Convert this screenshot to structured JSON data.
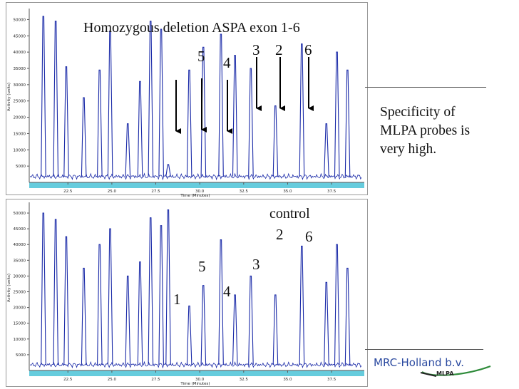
{
  "chart_data": [
    {
      "type": "line",
      "id": "top",
      "ylabel": "Activity (units)",
      "xlabel": "Time (Minutes)",
      "xlim": [
        20.3,
        39.2
      ],
      "ylim": [
        0,
        52500
      ],
      "x_ticks": [
        "22.5",
        "25.0",
        "27.5",
        "30.0",
        "32.5",
        "35.0",
        "37.5"
      ],
      "y_ticks": [
        "5000",
        "10000",
        "15000",
        "20000",
        "25000",
        "30000",
        "35000",
        "40000",
        "45000",
        "50000"
      ],
      "peaks": [
        {
          "x": 21.1,
          "y": 51000
        },
        {
          "x": 21.8,
          "y": 49500
        },
        {
          "x": 22.4,
          "y": 35500
        },
        {
          "x": 23.4,
          "y": 26000
        },
        {
          "x": 24.3,
          "y": 34500
        },
        {
          "x": 24.9,
          "y": 46500
        },
        {
          "x": 25.9,
          "y": 18000
        },
        {
          "x": 26.6,
          "y": 31000
        },
        {
          "x": 27.2,
          "y": 49500
        },
        {
          "x": 27.8,
          "y": 47000
        },
        {
          "x": 28.2,
          "y": 5500
        },
        {
          "x": 29.4,
          "y": 34500
        },
        {
          "x": 30.2,
          "y": 41500
        },
        {
          "x": 31.2,
          "y": 45500
        },
        {
          "x": 32.0,
          "y": 39000
        },
        {
          "x": 32.9,
          "y": 35000
        },
        {
          "x": 34.3,
          "y": 23500
        },
        {
          "x": 35.8,
          "y": 42500
        },
        {
          "x": 37.2,
          "y": 18000
        },
        {
          "x": 37.8,
          "y": 40000
        },
        {
          "x": 38.4,
          "y": 34500
        }
      ]
    },
    {
      "type": "line",
      "id": "bottom",
      "ylabel": "Activity (units)",
      "xlabel": "Time (Minutes)",
      "xlim": [
        20.3,
        39.2
      ],
      "ylim": [
        0,
        52500
      ],
      "x_ticks": [
        "22.5",
        "25.0",
        "27.5",
        "30.0",
        "32.5",
        "35.0",
        "37.5"
      ],
      "y_ticks": [
        "5000",
        "10000",
        "15000",
        "20000",
        "25000",
        "30000",
        "35000",
        "40000",
        "45000",
        "50000"
      ],
      "peaks": [
        {
          "x": 21.1,
          "y": 50000
        },
        {
          "x": 21.8,
          "y": 48000
        },
        {
          "x": 22.4,
          "y": 42500
        },
        {
          "x": 23.4,
          "y": 32500
        },
        {
          "x": 24.3,
          "y": 40000
        },
        {
          "x": 24.9,
          "y": 45000
        },
        {
          "x": 25.9,
          "y": 30000
        },
        {
          "x": 26.6,
          "y": 34500
        },
        {
          "x": 27.2,
          "y": 48500
        },
        {
          "x": 27.8,
          "y": 46000
        },
        {
          "x": 28.2,
          "y": 51000
        },
        {
          "x": 29.4,
          "y": 20500
        },
        {
          "x": 30.2,
          "y": 27000
        },
        {
          "x": 31.2,
          "y": 41500
        },
        {
          "x": 32.0,
          "y": 24000
        },
        {
          "x": 32.9,
          "y": 30000
        },
        {
          "x": 34.3,
          "y": 24000
        },
        {
          "x": 35.8,
          "y": 39500
        },
        {
          "x": 37.2,
          "y": 28000
        },
        {
          "x": 37.8,
          "y": 40000
        },
        {
          "x": 38.4,
          "y": 32500
        }
      ]
    }
  ],
  "annotations": {
    "top_title": "Homozygous deletion ASPA exon 1-6",
    "top_probe_labels": [
      "5",
      "4",
      "3",
      "2",
      "6"
    ],
    "bottom_title": "control",
    "bottom_probe_labels": [
      "1",
      "5",
      "4",
      "3",
      "2",
      "6"
    ]
  },
  "side_text": "Specificity of MLPA probes is very high.",
  "branding": {
    "name": "MRC-Holland b.v.",
    "sub": "MLPA",
    "color": "#2b4aa0"
  },
  "colors": {
    "trace": "#1a2aa8",
    "axis_band": "#66ccdd",
    "text": "#111111"
  }
}
